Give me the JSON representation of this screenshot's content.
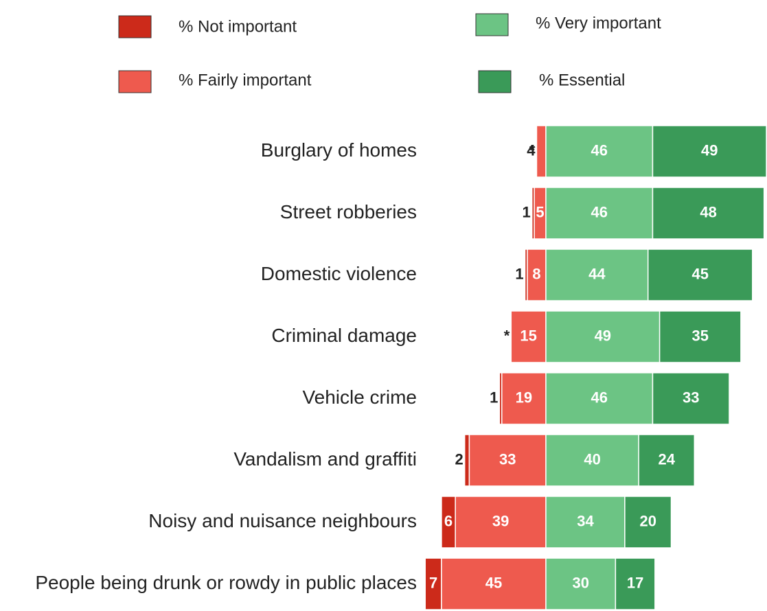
{
  "chart_data": {
    "type": "diverging-bar",
    "categories": [
      "Burglary of homes",
      "Street robberies",
      "Domestic violence",
      "Criminal damage",
      "Vehicle crime",
      "Vandalism and graffiti",
      "Noisy and nuisance neighbours",
      "People being drunk or rowdy in public places"
    ],
    "series": [
      {
        "name": "% Not important",
        "color": "#cc2a1a",
        "values": [
          0,
          1,
          1,
          0,
          1,
          2,
          6,
          7
        ],
        "value_labels": [
          "*",
          "1",
          "1",
          "*",
          "1",
          "2",
          "6",
          "7"
        ]
      },
      {
        "name": "% Fairly important",
        "color": "#ee5a4e",
        "values": [
          4,
          5,
          8,
          15,
          19,
          33,
          39,
          45
        ]
      },
      {
        "name": "% Very important",
        "color": "#6cc484",
        "values": [
          46,
          46,
          44,
          49,
          46,
          40,
          34,
          30
        ]
      },
      {
        "name": "% Essential",
        "color": "#3a9a58",
        "values": [
          49,
          48,
          45,
          35,
          33,
          24,
          20,
          17
        ]
      }
    ]
  }
}
